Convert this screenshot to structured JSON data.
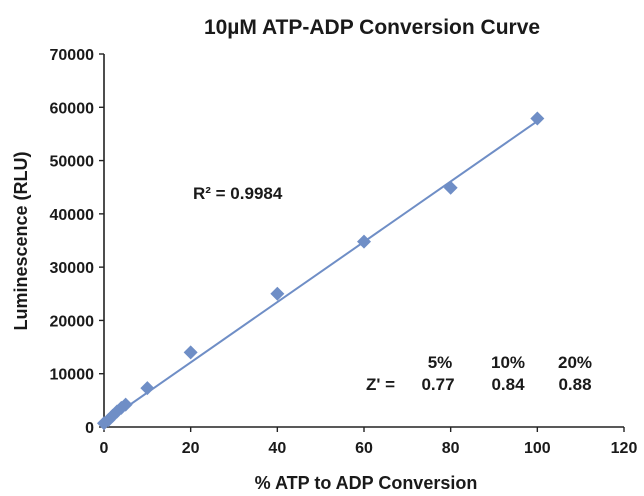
{
  "chart_data": {
    "type": "scatter",
    "title": "10µM ATP-ADP Conversion Curve",
    "xlabel": "% ATP to ADP Conversion",
    "ylabel": "Luminescence (RLU)",
    "xlim": [
      0,
      120
    ],
    "ylim": [
      0,
      70000
    ],
    "x_ticks": [
      "0",
      "20",
      "40",
      "60",
      "80",
      "100",
      "120"
    ],
    "y_ticks": [
      "0",
      "10000",
      "20000",
      "30000",
      "40000",
      "50000",
      "60000",
      "70000"
    ],
    "grid": false,
    "series": [
      {
        "marker": "diamond",
        "color": "#6f8ec6",
        "x": [
          0,
          1,
          2,
          3,
          4,
          5,
          10,
          20,
          40,
          60,
          80,
          100
        ],
        "y": [
          700,
          1300,
          2100,
          2900,
          3600,
          4200,
          7300,
          14000,
          25000,
          34800,
          44900,
          57900
        ]
      }
    ],
    "trendline": {
      "type": "linear",
      "color": "#6f8ec6",
      "x": [
        0,
        100
      ],
      "y": [
        800,
        57400
      ]
    },
    "annotations": {
      "r_squared": "R² = 0.9984",
      "zprime_label": "Z' =",
      "zprime_headers": [
        "5%",
        "10%",
        "20%"
      ],
      "zprime_values": [
        "0.77",
        "0.84",
        "0.88"
      ]
    }
  }
}
